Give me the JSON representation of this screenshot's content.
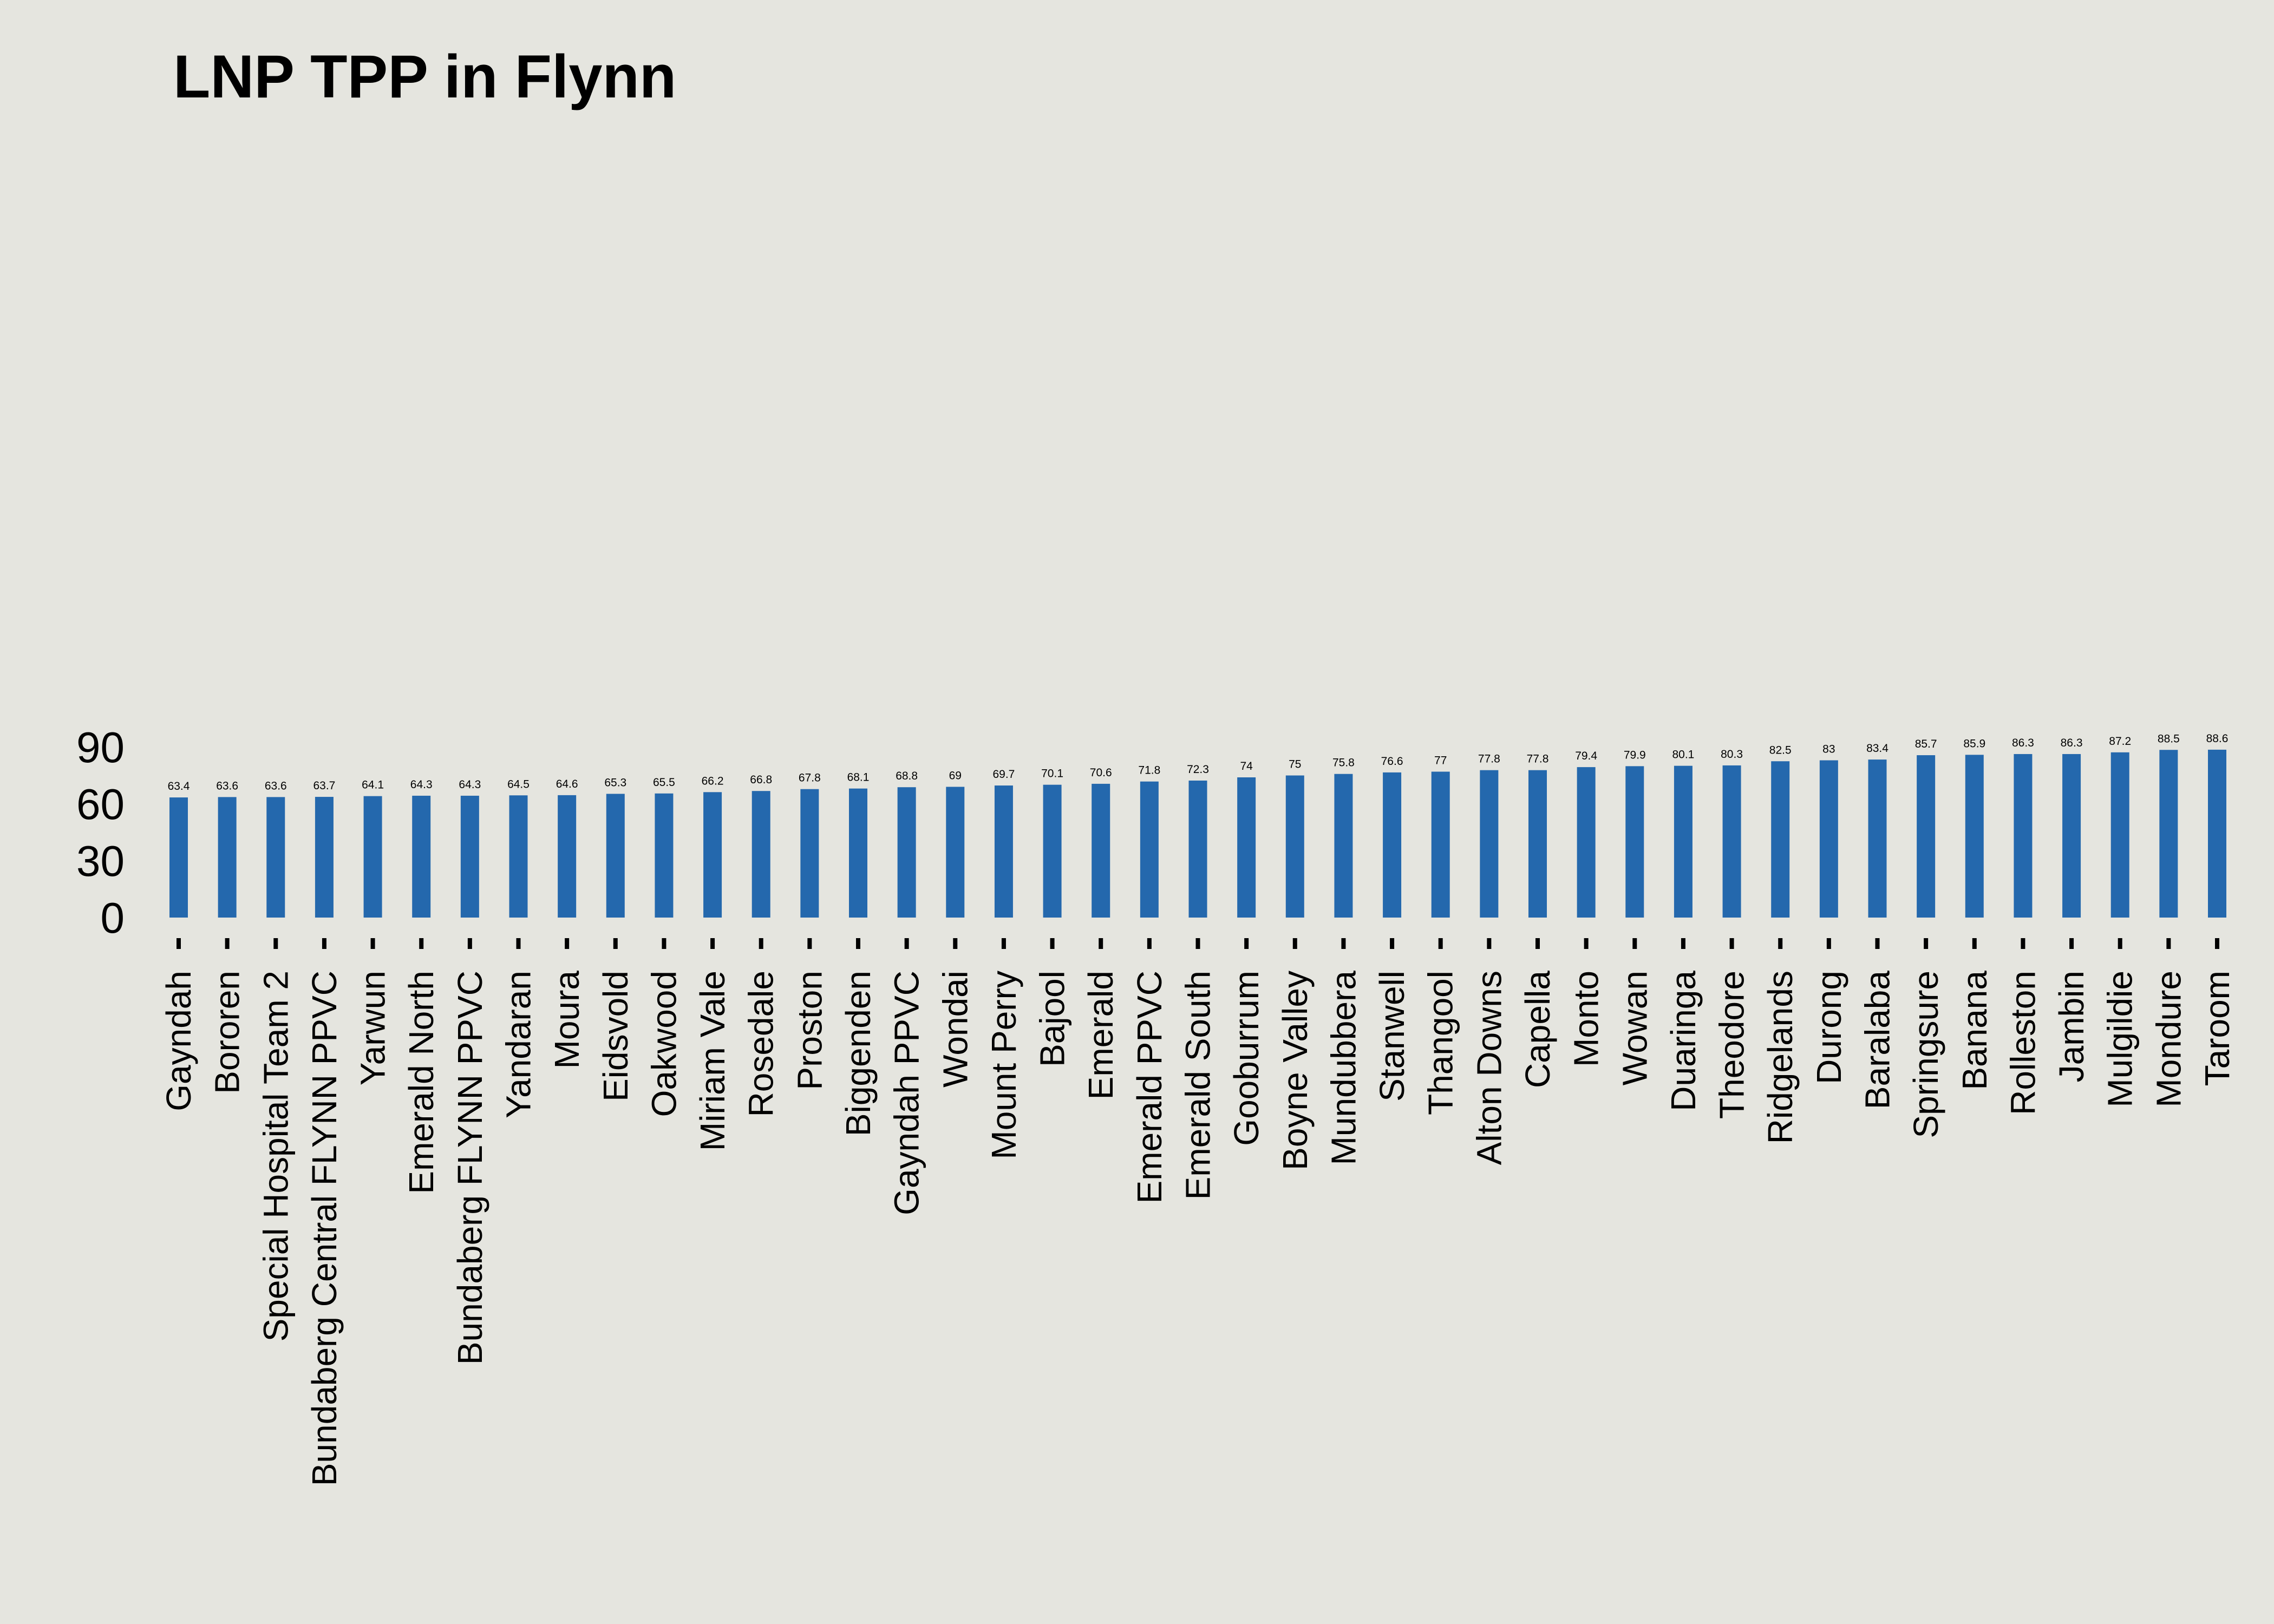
{
  "chart_data": {
    "type": "bar",
    "title": "LNP TPP in Flynn",
    "xlabel": "",
    "ylabel": "",
    "ylim": [
      0,
      90
    ],
    "y_ticks": [
      "0",
      "30",
      "60",
      "90"
    ],
    "grid": false,
    "bar_color": "#2468ad",
    "background_color": "#e5e5df",
    "categories": [
      "Gayndah",
      "Bororen",
      "Special Hospital Team 2",
      "Bundaberg Central FLYNN PPVC",
      "Yarwun",
      "Emerald North",
      "Bundaberg FLYNN PPVC",
      "Yandaran",
      "Moura",
      "Eidsvold",
      "Oakwood",
      "Miriam Vale",
      "Rosedale",
      "Proston",
      "Biggenden",
      "Gayndah PPVC",
      "Wondai",
      "Mount Perry",
      "Bajool",
      "Emerald",
      "Emerald PPVC",
      "Emerald South",
      "Gooburrum",
      "Boyne Valley",
      "Mundubbera",
      "Stanwell",
      "Thangool",
      "Alton Downs",
      "Capella",
      "Monto",
      "Wowan",
      "Duaringa",
      "Theodore",
      "Ridgelands",
      "Durong",
      "Baralaba",
      "Springsure",
      "Banana",
      "Rolleston",
      "Jambin",
      "Mulgildie",
      "Mondure",
      "Taroom"
    ],
    "values": [
      63.4,
      63.6,
      63.6,
      63.7,
      64.1,
      64.3,
      64.3,
      64.5,
      64.6,
      65.3,
      65.5,
      66.2,
      66.8,
      67.8,
      68.1,
      68.8,
      69,
      69.7,
      70.1,
      70.6,
      71.8,
      72.3,
      74,
      75,
      75.8,
      76.6,
      77,
      77.8,
      77.8,
      79.4,
      79.9,
      80.1,
      80.3,
      82.5,
      83,
      83.4,
      85.7,
      85.9,
      86.3,
      86.3,
      87.2,
      88.5,
      88.6
    ],
    "data_labels": [
      "63.4",
      "63.6",
      "63.6",
      "63.7",
      "64.1",
      "64.3",
      "64.3",
      "64.5",
      "64.6",
      "65.3",
      "65.5",
      "66.2",
      "66.8",
      "67.8",
      "68.1",
      "68.8",
      "69",
      "69.7",
      "70.1",
      "70.6",
      "71.8",
      "72.3",
      "74",
      "75",
      "75.8",
      "76.6",
      "77",
      "77.8",
      "77.8",
      "79.4",
      "79.9",
      "80.1",
      "80.3",
      "82.5",
      "83",
      "83.4",
      "85.7",
      "85.9",
      "86.3",
      "86.3",
      "87.2",
      "88.5",
      "88.6"
    ]
  }
}
